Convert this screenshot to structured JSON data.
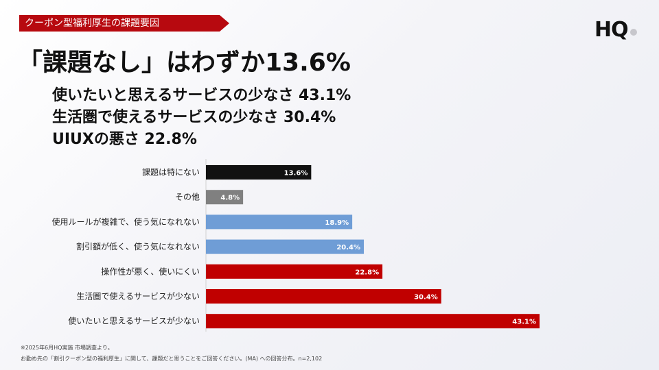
{
  "header": {
    "tag": "クーポン型福利厚生の課題要因",
    "logo": "HQ"
  },
  "headline": "「課題なし」はわずか13.6%",
  "key_points": [
    "使いたいと思えるサービスの少なさ 43.1%",
    "生活圏で使えるサービスの少なさ 30.4%",
    "UIUXの悪さ 22.8%"
  ],
  "chart_data": {
    "type": "bar",
    "orientation": "horizontal",
    "categories": [
      "課題は特にない",
      "その他",
      "使用ルールが複雑で、使う気になれない",
      "割引額が低く、使う気になれない",
      "操作性が悪く、使いにくい",
      "生活圏で使えるサービスが少ない",
      "使いたいと思えるサービスが少ない"
    ],
    "values": [
      13.6,
      4.8,
      18.9,
      20.4,
      22.8,
      30.4,
      43.1
    ],
    "value_labels": [
      "13.6%",
      "4.8%",
      "18.9%",
      "20.4%",
      "22.8%",
      "30.4%",
      "43.1%"
    ],
    "bar_colors": [
      "#111111",
      "#808080",
      "#6f9dd6",
      "#6f9dd6",
      "#c00000",
      "#c00000",
      "#c00000"
    ],
    "xlim": [
      0,
      43.1
    ],
    "grid": false,
    "legend": "none"
  },
  "footnotes": [
    "※2025年6月HQ実施 市場調査より。",
    "お勤め先の「割引クーポン型の福利厚生」に関して、課題だと思うことをご回答ください。(MA) への回答分布。n=2,102"
  ]
}
